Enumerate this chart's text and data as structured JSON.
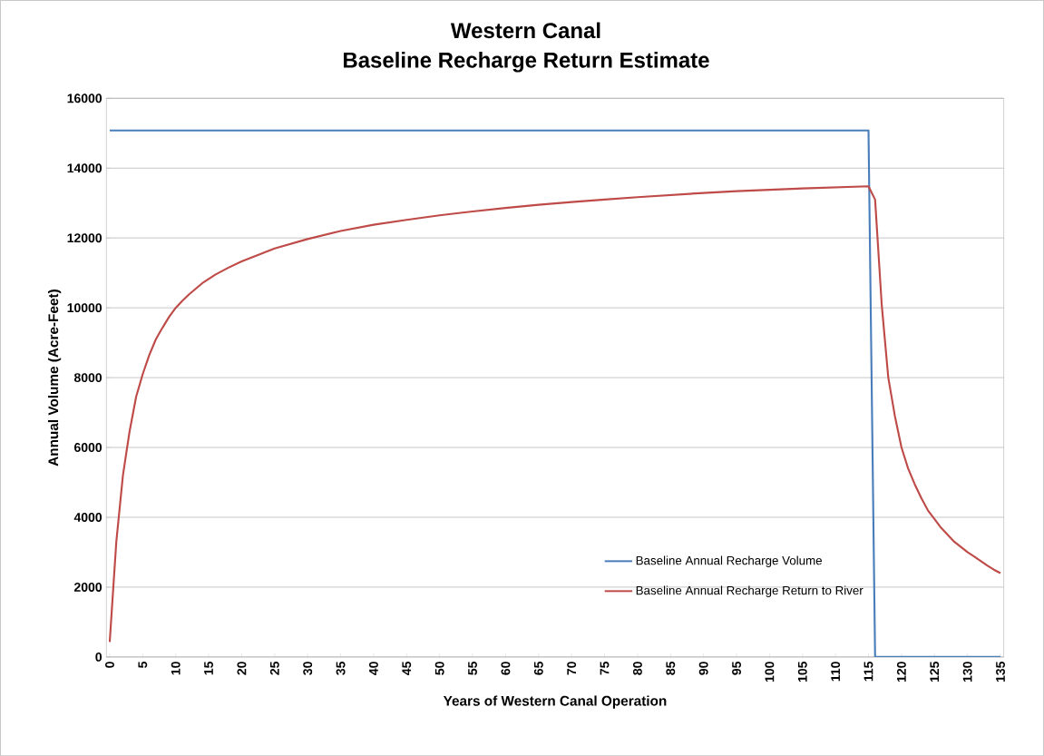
{
  "chart_data": {
    "type": "line",
    "title": "Western Canal",
    "subtitle": "Baseline Recharge Return Estimate",
    "xlabel": "Years of Western Canal Operation",
    "ylabel": "Annual Volume (Acre-Feet)",
    "xlim": [
      -0.5,
      135.5
    ],
    "xticks": [
      0,
      5,
      10,
      15,
      20,
      25,
      30,
      35,
      40,
      45,
      50,
      55,
      60,
      65,
      70,
      75,
      80,
      85,
      90,
      95,
      100,
      105,
      110,
      115,
      120,
      125,
      130,
      135
    ],
    "ylim": [
      0,
      16000
    ],
    "yticks": [
      0,
      2000,
      4000,
      6000,
      8000,
      10000,
      12000,
      14000,
      16000
    ],
    "grid": "y",
    "legend": "bottom right",
    "marker": "none",
    "line_style": "solid",
    "series": [
      {
        "name": "Baseline Annual Recharge Volume",
        "color": "#4a7ebb",
        "x": [
          0,
          115,
          116,
          135
        ],
        "values": [
          15080,
          15080,
          0,
          0
        ]
      },
      {
        "name": "Baseline Annual Recharge Return to River",
        "color": "#be4b48",
        "x": [
          0,
          1,
          2,
          3,
          4,
          5,
          6,
          7,
          8,
          9,
          10,
          11,
          12,
          14,
          16,
          18,
          20,
          25,
          30,
          35,
          40,
          45,
          50,
          55,
          60,
          65,
          70,
          75,
          80,
          85,
          90,
          95,
          100,
          105,
          110,
          115,
          116,
          117,
          118,
          119,
          120,
          121,
          122,
          123,
          124,
          125,
          126,
          127,
          128,
          129,
          130,
          131,
          132,
          133,
          134,
          135
        ],
        "values": [
          430,
          3300,
          5200,
          6450,
          7450,
          8100,
          8650,
          9100,
          9430,
          9740,
          10000,
          10200,
          10380,
          10700,
          10950,
          11150,
          11330,
          11700,
          11970,
          12200,
          12380,
          12520,
          12650,
          12760,
          12860,
          12950,
          13030,
          13100,
          13170,
          13230,
          13290,
          13340,
          13380,
          13420,
          13450,
          13480,
          13100,
          10100,
          8000,
          6900,
          6000,
          5400,
          4950,
          4550,
          4200,
          3950,
          3700,
          3500,
          3300,
          3150,
          3000,
          2880,
          2750,
          2620,
          2500,
          2400
        ]
      }
    ]
  }
}
